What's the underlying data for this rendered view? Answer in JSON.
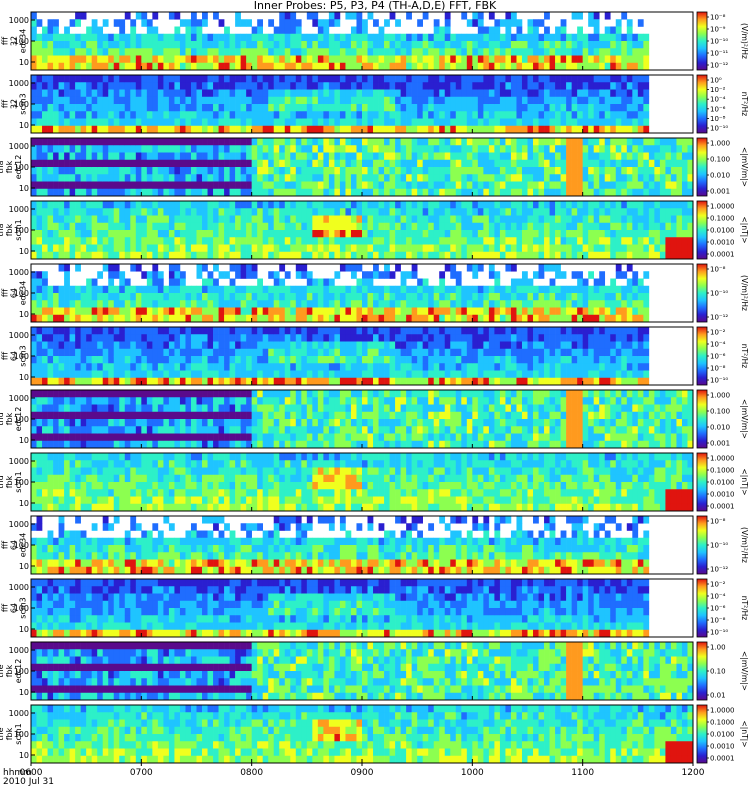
{
  "title": "Inner Probes: P5, P3, P4 (TH-A,D,E) FFT, FBK",
  "colors": {
    "palette": [
      "#ffffff",
      "#5a0a8c",
      "#2a1fd0",
      "#1f6dff",
      "#1fc4ff",
      "#2df0c8",
      "#8cff50",
      "#f0ff1e",
      "#ff9a1e",
      "#e0140f"
    ]
  },
  "chart_data": {
    "type": "heatmap",
    "x_axis": {
      "range": [
        "0600",
        "1200"
      ],
      "ticks": [
        "0600",
        "0700",
        "0800",
        "0900",
        "1000",
        "1100",
        "1200"
      ],
      "label_lines": [
        "hhmm",
        "2010 Jul 31"
      ]
    },
    "y_ticks": [
      "1000",
      "100",
      "10"
    ],
    "panels": [
      {
        "label": [
          "tha",
          "fff",
          "32",
          "edc34"
        ],
        "type": "edc34",
        "colorbar": {
          "ticks": [
            "10⁻⁸",
            "10⁻⁹",
            "10⁻¹⁰",
            "10⁻¹¹",
            "10⁻¹²"
          ],
          "label": "(V/m)²/Hz"
        }
      },
      {
        "label": [
          "tha",
          "fff",
          "32",
          "scm3"
        ],
        "type": "scm3",
        "colorbar": {
          "ticks": [
            "10⁰",
            "10⁻²",
            "10⁻⁴",
            "10⁻⁶",
            "10⁻⁸",
            "10⁻¹⁰"
          ],
          "label": "nT²/Hz"
        }
      },
      {
        "label": [
          "tha",
          "fbk",
          "edc12"
        ],
        "type": "edc12",
        "colorbar": {
          "ticks": [
            "1.000",
            "0.100",
            "0.010",
            "0.001"
          ],
          "label": "<|mV/m|>"
        }
      },
      {
        "label": [
          "tha",
          "fbk",
          "scm1"
        ],
        "type": "scm1",
        "colorbar": {
          "ticks": [
            "1.0000",
            "0.1000",
            "0.0100",
            "0.0010",
            "0.0001"
          ],
          "label": "<|nT|>"
        }
      },
      {
        "label": [
          "thd",
          "fff",
          "64",
          "edc34"
        ],
        "type": "edc34",
        "colorbar": {
          "ticks": [
            "10⁻⁸",
            "10⁻¹⁰",
            "10⁻¹²"
          ],
          "label": "(V/m)²/Hz"
        }
      },
      {
        "label": [
          "thd",
          "fff",
          "64",
          "scm3"
        ],
        "type": "scm3",
        "colorbar": {
          "ticks": [
            "10⁻²",
            "10⁻⁴",
            "10⁻⁶",
            "10⁻⁸",
            "10⁻¹⁰"
          ],
          "label": "nT²/Hz"
        }
      },
      {
        "label": [
          "thd",
          "fbk",
          "edc12"
        ],
        "type": "edc12",
        "colorbar": {
          "ticks": [
            "1.000",
            "0.100",
            "0.010",
            "0.001"
          ],
          "label": "<|mV/m|>"
        }
      },
      {
        "label": [
          "thd",
          "fbk",
          "scm1"
        ],
        "type": "scm1",
        "colorbar": {
          "ticks": [
            "1.0000",
            "0.1000",
            "0.0100",
            "0.0010",
            "0.0001"
          ],
          "label": "<|nT|>"
        }
      },
      {
        "label": [
          "the",
          "fff",
          "64",
          "edc34"
        ],
        "type": "edc34",
        "colorbar": {
          "ticks": [
            "10⁻⁸",
            "10⁻¹⁰",
            "10⁻¹²"
          ],
          "label": "(V/m)²/Hz"
        }
      },
      {
        "label": [
          "the",
          "fff",
          "64",
          "scm3"
        ],
        "type": "scm3",
        "colorbar": {
          "ticks": [
            "10⁻²",
            "10⁻⁴",
            "10⁻⁶",
            "10⁻⁸",
            "10⁻¹⁰"
          ],
          "label": "nT²/Hz"
        }
      },
      {
        "label": [
          "the",
          "fbk",
          "edc12"
        ],
        "type": "edc12",
        "colorbar": {
          "ticks": [
            "1.00",
            "0.10",
            "0.01"
          ],
          "label": "<|mV/m|>"
        }
      },
      {
        "label": [
          "the",
          "fbk",
          "scm1"
        ],
        "type": "scm1",
        "colorbar": {
          "ticks": [
            "1.0000",
            "0.1000",
            "0.0100",
            "0.0010",
            "0.0001"
          ],
          "label": "<|nT|>"
        }
      }
    ]
  }
}
